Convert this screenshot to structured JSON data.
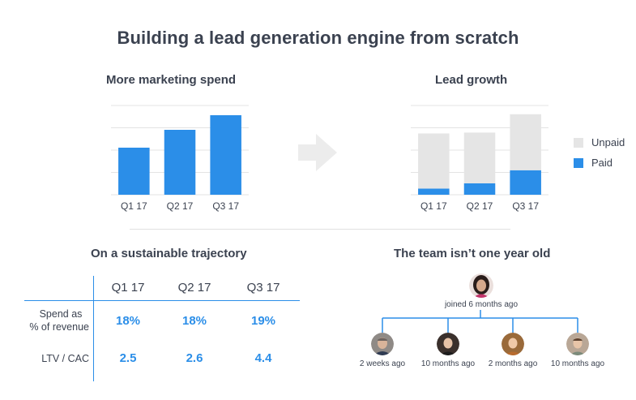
{
  "title": "Building a lead generation engine from scratch",
  "spend_chart": {
    "title": "More marketing spend"
  },
  "growth_chart": {
    "title": "Lead growth",
    "legend": [
      {
        "label": "Unpaid",
        "color": "#e5e5e5"
      },
      {
        "label": "Paid",
        "color": "#2b8ee8"
      }
    ]
  },
  "chart_data": [
    {
      "type": "bar",
      "title": "More marketing spend",
      "categories": [
        "Q1 17",
        "Q2 17",
        "Q3 17"
      ],
      "values": [
        58,
        80,
        98
      ],
      "ylim": [
        0,
        110
      ],
      "grid": true,
      "color": "#2b8ee8"
    },
    {
      "type": "bar",
      "stacked": true,
      "title": "Lead growth",
      "categories": [
        "Q1 17",
        "Q2 17",
        "Q3 17"
      ],
      "series": [
        {
          "name": "Paid",
          "values": [
            7,
            13,
            28
          ],
          "color": "#2b8ee8"
        },
        {
          "name": "Unpaid",
          "values": [
            63,
            58,
            64
          ],
          "color": "#e5e5e5"
        }
      ],
      "ylim": [
        0,
        102
      ],
      "grid": true,
      "legend": "right"
    }
  ],
  "trajectory": {
    "title": "On a sustainable trajectory",
    "columns": [
      "Q1 17",
      "Q2 17",
      "Q3 17"
    ],
    "rows": [
      {
        "label_line1": "Spend as",
        "label_line2": "% of revenue",
        "values": [
          "18%",
          "18%",
          "19%"
        ]
      },
      {
        "label_line1": "LTV / CAC",
        "label_line2": "",
        "values": [
          "2.5",
          "2.6",
          "4.4"
        ]
      }
    ]
  },
  "team": {
    "title": "The team isn’t one year old",
    "lead": {
      "label": "joined 6 months ago"
    },
    "members": [
      {
        "label": "2 weeks ago"
      },
      {
        "label": "10 months ago"
      },
      {
        "label": "2 months ago"
      },
      {
        "label": "10 months ago"
      }
    ],
    "line_color": "#2b8ee8"
  },
  "arrow_icon": "arrow-right-icon"
}
